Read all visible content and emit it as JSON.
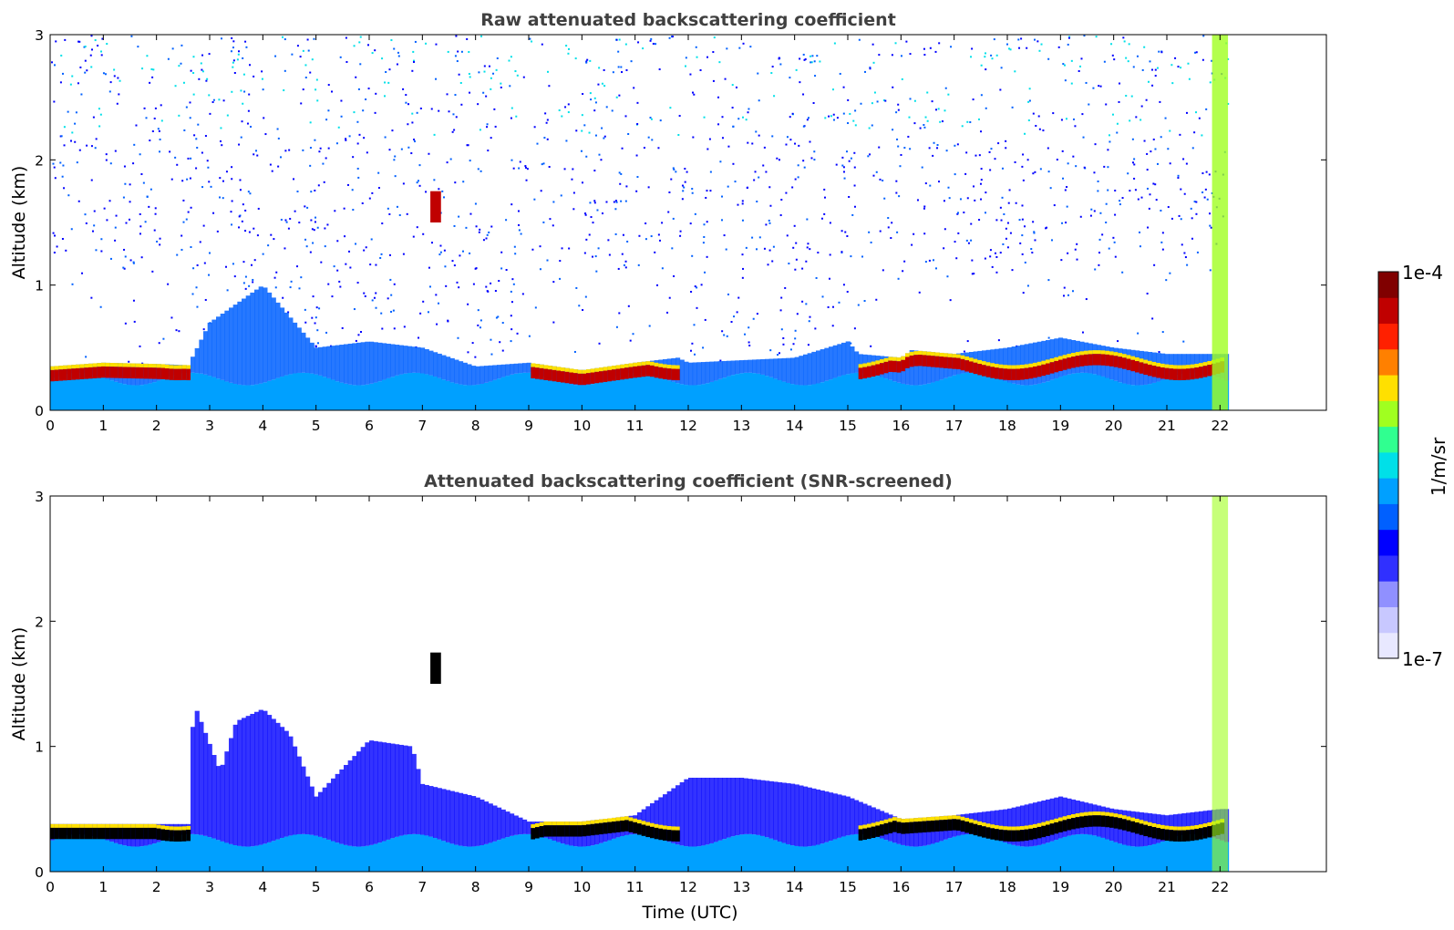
{
  "chart_data": [
    {
      "type": "heatmap",
      "title": "Raw attenuated backscattering coefficient",
      "xlabel": "",
      "ylabel": "Altitude (km)",
      "xlim": [
        0,
        24
      ],
      "ylim": [
        0,
        3
      ],
      "xticks": [
        "0",
        "1",
        "2",
        "3",
        "4",
        "5",
        "6",
        "7",
        "8",
        "9",
        "10",
        "11",
        "12",
        "13",
        "14",
        "15",
        "16",
        "17",
        "18",
        "19",
        "20",
        "21",
        "22"
      ],
      "yticks": [
        "0",
        "1",
        "2",
        "3"
      ],
      "data_end_hour": 22.15,
      "description_series": [
        {
          "name": "boundary layer top (km)",
          "x": [
            0,
            1,
            2,
            2.6,
            3,
            4,
            5,
            6,
            7,
            8,
            9,
            10,
            11,
            11.8,
            12,
            13,
            14,
            15,
            15.2,
            16,
            16.2,
            17,
            18,
            19,
            20,
            21,
            22,
            22.15
          ],
          "values": [
            0.35,
            0.38,
            0.37,
            0.36,
            0.7,
            1.0,
            0.5,
            0.55,
            0.5,
            0.35,
            0.38,
            0.32,
            0.38,
            0.42,
            0.38,
            0.4,
            0.42,
            0.55,
            0.45,
            0.42,
            0.48,
            0.45,
            0.5,
            0.58,
            0.5,
            0.45,
            0.45,
            0.45
          ]
        },
        {
          "name": "isolated cloud (km)",
          "x": [
            7.15,
            7.35
          ],
          "values": [
            1.5,
            1.75
          ]
        }
      ]
    },
    {
      "type": "heatmap",
      "title": "Attenuated backscattering coefficient (SNR-screened)",
      "xlabel": "Time (UTC)",
      "ylabel": "Altitude (km)",
      "xlim": [
        0,
        24
      ],
      "ylim": [
        0,
        3
      ],
      "xticks": [
        "0",
        "1",
        "2",
        "3",
        "4",
        "5",
        "6",
        "7",
        "8",
        "9",
        "10",
        "11",
        "12",
        "13",
        "14",
        "15",
        "16",
        "17",
        "18",
        "19",
        "20",
        "21",
        "22"
      ],
      "yticks": [
        "0",
        "1",
        "2",
        "3"
      ],
      "data_end_hour": 22.15,
      "description_series": [
        {
          "name": "screened signal top (km)",
          "x": [
            0,
            2.6,
            2.7,
            3.2,
            3.5,
            4,
            4.5,
            5,
            6,
            6.8,
            7,
            8,
            9,
            10,
            11,
            12,
            13,
            14,
            15,
            16,
            17,
            18,
            19,
            20,
            21,
            22
          ],
          "values": [
            0.38,
            0.38,
            1.35,
            0.8,
            1.2,
            1.3,
            1.1,
            0.6,
            1.05,
            1.0,
            0.7,
            0.6,
            0.4,
            0.4,
            0.45,
            0.75,
            0.75,
            0.7,
            0.6,
            0.42,
            0.45,
            0.5,
            0.6,
            0.5,
            0.45,
            0.5
          ]
        }
      ]
    }
  ],
  "colorbar": {
    "label": "1/m/sr",
    "max_label": "1e-4",
    "min_label": "1e-7",
    "colors": [
      "#e8e8ff",
      "#c8c8ff",
      "#9090ff",
      "#3030ff",
      "#0000ff",
      "#0060ff",
      "#00a0ff",
      "#00e0e8",
      "#30ff90",
      "#a0ff20",
      "#ffe000",
      "#ff8000",
      "#ff2000",
      "#c00000",
      "#800000"
    ]
  }
}
